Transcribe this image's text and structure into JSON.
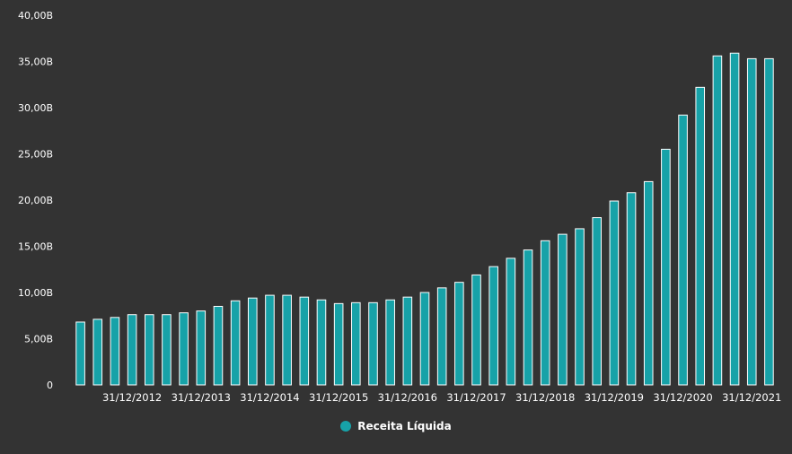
{
  "chart_data": {
    "type": "bar",
    "title": "",
    "xlabel": "",
    "ylabel": "",
    "ylim": [
      0,
      40
    ],
    "yticks": [
      0,
      5,
      10,
      15,
      20,
      25,
      30,
      35,
      40
    ],
    "ytick_labels": [
      "0",
      "5,00B",
      "10,00B",
      "15,00B",
      "20,00B",
      "25,00B",
      "30,00B",
      "35,00B",
      "40,00B"
    ],
    "xtick_labels": [
      "31/12/2012",
      "31/12/2013",
      "31/12/2014",
      "31/12/2015",
      "31/12/2016",
      "31/12/2017",
      "31/12/2018",
      "31/12/2019",
      "31/12/2020",
      "31/12/2021"
    ],
    "xtick_positions": [
      3.5,
      7.5,
      11.5,
      15.5,
      19.5,
      23.5,
      27.5,
      31.5,
      35.5,
      39.5
    ],
    "series": [
      {
        "name": "Receita Líquida",
        "color": "#17a2a8",
        "values": [
          6.8,
          7.1,
          7.3,
          7.6,
          7.6,
          7.6,
          7.8,
          8.0,
          8.5,
          9.1,
          9.4,
          9.7,
          9.7,
          9.5,
          9.2,
          8.8,
          8.9,
          8.9,
          9.2,
          9.5,
          10.0,
          10.5,
          11.1,
          11.9,
          12.8,
          13.7,
          14.6,
          15.6,
          16.3,
          16.9,
          18.1,
          19.9,
          20.8,
          22.0,
          25.5,
          29.2,
          32.2,
          35.6,
          35.9,
          35.3,
          35.3
        ]
      }
    ],
    "grid": false,
    "legend_position": "bottom"
  }
}
